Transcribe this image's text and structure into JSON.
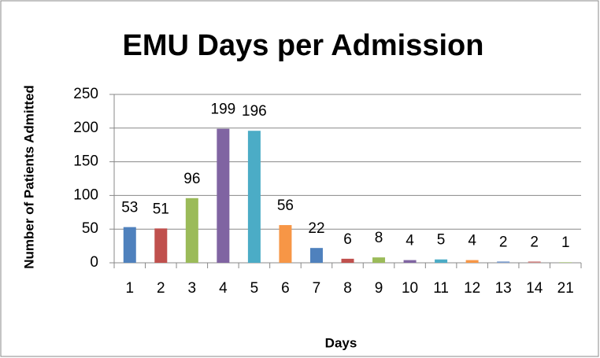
{
  "chart_data": {
    "type": "bar",
    "title": "EMU Days per Admission",
    "x_label": "Days",
    "y_label": "Number of Patients Admitted",
    "categories": [
      "1",
      "2",
      "3",
      "4",
      "5",
      "6",
      "7",
      "8",
      "9",
      "10",
      "11",
      "12",
      "13",
      "14",
      "21"
    ],
    "values": [
      53,
      51,
      96,
      199,
      196,
      56,
      22,
      6,
      8,
      4,
      5,
      4,
      2,
      2,
      1
    ],
    "colors": [
      "#4f81bd",
      "#c0504d",
      "#9bbb59",
      "#8064a2",
      "#4bacc6",
      "#f79646",
      "#4f81bd",
      "#c0504d",
      "#9bbb59",
      "#8064a2",
      "#4bacc6",
      "#f79646",
      "#7f9fcf",
      "#d08987",
      "#b6cf8b"
    ],
    "ylim": [
      0,
      250
    ],
    "yticks": [
      0,
      50,
      100,
      150,
      200,
      250
    ],
    "grid": true
  }
}
